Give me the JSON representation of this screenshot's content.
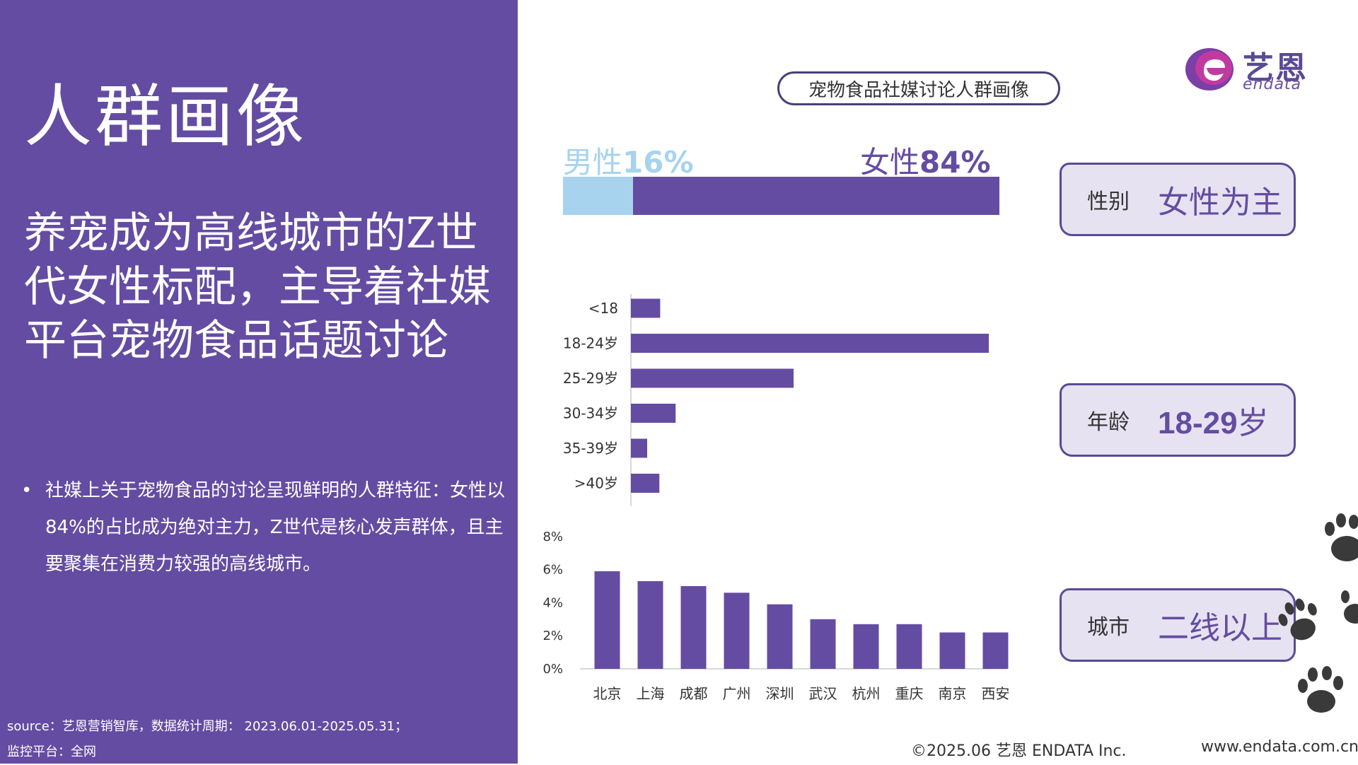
{
  "left": {
    "title": "人群画像",
    "headline": "养宠成为高线城市的Z世代女性标配，主导着社媒平台宠物食品话题讨论",
    "bullet": "社媒上关于宠物食品的讨论呈现鲜明的人群特征：女性以84%的占比成为绝对主力，Z世代是核心发声群体，且主要聚集在消费力较强的高线城市。",
    "source_line1": "source：艺恩营销智库，数据统计周期： 2023.06.01-2025.05.31；",
    "source_line2": "监控平台：全网"
  },
  "logo": {
    "cn": "艺恩",
    "en": "endata"
  },
  "chart_title": "宠物食品社媒讨论人群画像",
  "tags": {
    "gender": {
      "key": "性别",
      "value": "女性为主"
    },
    "age": {
      "key": "年龄",
      "value_num": "18-29",
      "value_unit": "岁"
    },
    "city": {
      "key": "城市",
      "value": "二线以上"
    }
  },
  "footer": {
    "copyright": "©2025.06  艺恩 ENDATA Inc.",
    "url": "www.endata.com.cn"
  },
  "colors": {
    "accent": "#644ca2",
    "male": "#a7d3ee"
  },
  "icons": [
    "paw-print-icon"
  ],
  "chart_data": [
    {
      "type": "bar",
      "orientation": "horizontal-stacked",
      "categories": [
        "性别"
      ],
      "series": [
        {
          "name": "男性",
          "values": [
            16
          ]
        },
        {
          "name": "女性",
          "values": [
            84
          ]
        }
      ],
      "labels": {
        "male_name": "男性",
        "male_pct": "16%",
        "female_name": "女性",
        "female_pct": "84%"
      }
    },
    {
      "type": "bar",
      "orientation": "horizontal",
      "categories": [
        "<18",
        "18-24岁",
        "25-29岁",
        "30-34岁",
        "35-39岁",
        ">40岁"
      ],
      "values": [
        3.6,
        44,
        20,
        5.5,
        2,
        3.5
      ],
      "value_axis_shown": false
    },
    {
      "type": "bar",
      "orientation": "vertical",
      "categories": [
        "北京",
        "上海",
        "成都",
        "广州",
        "深圳",
        "武汉",
        "杭州",
        "重庆",
        "南京",
        "西安"
      ],
      "values": [
        5.9,
        5.3,
        5.0,
        4.6,
        3.9,
        3.0,
        2.7,
        2.7,
        2.2,
        2.2
      ],
      "ylim": [
        0,
        8
      ],
      "yticks": [
        "0%",
        "2%",
        "4%",
        "6%",
        "8%"
      ],
      "grid": false
    }
  ]
}
